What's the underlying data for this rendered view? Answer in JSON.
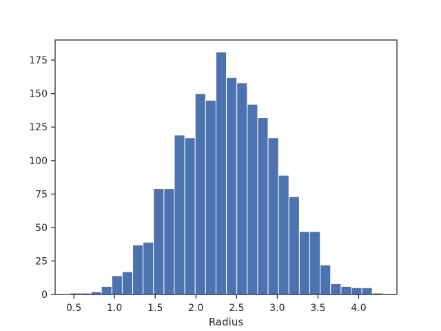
{
  "chart_data": {
    "type": "bar",
    "title": "",
    "xlabel": "Radius",
    "ylabel": "",
    "xlim": [
      0.27,
      4.47
    ],
    "ylim": [
      0,
      190
    ],
    "xticks": [
      0.5,
      1.0,
      1.5,
      2.0,
      2.5,
      3.0,
      3.5,
      4.0
    ],
    "xtick_labels": [
      "0.5",
      "1.0",
      "1.5",
      "2.0",
      "2.5",
      "3.0",
      "3.5",
      "4.0"
    ],
    "yticks": [
      0,
      25,
      50,
      75,
      100,
      125,
      150,
      175
    ],
    "ytick_labels": [
      "0",
      "25",
      "50",
      "75",
      "100",
      "125",
      "150",
      "175"
    ],
    "bar_color": "#4c72b0",
    "grid": false,
    "bins": [
      {
        "x0": 0.455,
        "x1": 0.583,
        "count": 1
      },
      {
        "x0": 0.583,
        "x1": 0.711,
        "count": 1
      },
      {
        "x0": 0.711,
        "x1": 0.839,
        "count": 2
      },
      {
        "x0": 0.839,
        "x1": 0.967,
        "count": 6
      },
      {
        "x0": 0.967,
        "x1": 1.095,
        "count": 14
      },
      {
        "x0": 1.095,
        "x1": 1.223,
        "count": 17
      },
      {
        "x0": 1.223,
        "x1": 1.351,
        "count": 37
      },
      {
        "x0": 1.351,
        "x1": 1.479,
        "count": 39
      },
      {
        "x0": 1.479,
        "x1": 1.607,
        "count": 79
      },
      {
        "x0": 1.607,
        "x1": 1.735,
        "count": 79
      },
      {
        "x0": 1.735,
        "x1": 1.863,
        "count": 119
      },
      {
        "x0": 1.863,
        "x1": 1.991,
        "count": 117
      },
      {
        "x0": 1.991,
        "x1": 2.119,
        "count": 150
      },
      {
        "x0": 2.119,
        "x1": 2.247,
        "count": 145
      },
      {
        "x0": 2.247,
        "x1": 2.375,
        "count": 181
      },
      {
        "x0": 2.375,
        "x1": 2.503,
        "count": 162
      },
      {
        "x0": 2.503,
        "x1": 2.631,
        "count": 158
      },
      {
        "x0": 2.631,
        "x1": 2.759,
        "count": 142
      },
      {
        "x0": 2.759,
        "x1": 2.887,
        "count": 132
      },
      {
        "x0": 2.887,
        "x1": 3.015,
        "count": 117
      },
      {
        "x0": 3.015,
        "x1": 3.143,
        "count": 89
      },
      {
        "x0": 3.143,
        "x1": 3.271,
        "count": 73
      },
      {
        "x0": 3.271,
        "x1": 3.399,
        "count": 47
      },
      {
        "x0": 3.399,
        "x1": 3.527,
        "count": 47
      },
      {
        "x0": 3.527,
        "x1": 3.655,
        "count": 22
      },
      {
        "x0": 3.655,
        "x1": 3.783,
        "count": 8
      },
      {
        "x0": 3.783,
        "x1": 3.911,
        "count": 6
      },
      {
        "x0": 3.911,
        "x1": 4.039,
        "count": 5
      },
      {
        "x0": 4.039,
        "x1": 4.167,
        "count": 5
      },
      {
        "x0": 4.167,
        "x1": 4.295,
        "count": 1
      }
    ]
  }
}
